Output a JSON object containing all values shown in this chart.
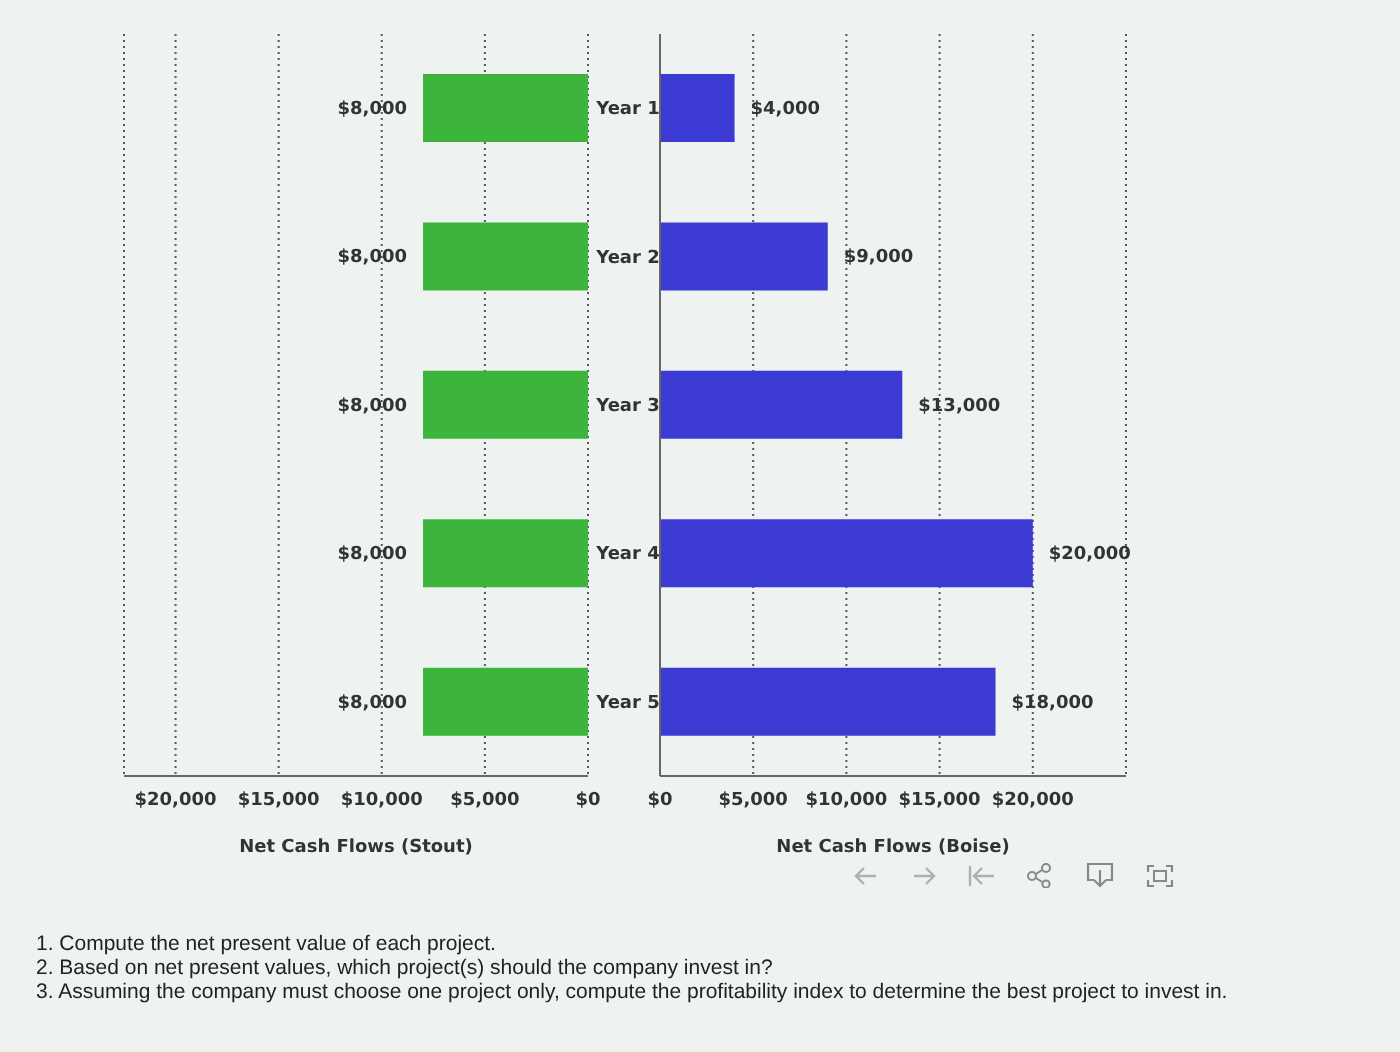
{
  "chart_data": [
    {
      "type": "bar",
      "orientation": "horizontal",
      "categories": [
        null,
        null,
        null,
        null,
        null
      ],
      "values": [
        8000,
        8000,
        8000,
        8000,
        8000
      ],
      "color": "#3db53d",
      "value_labels": [
        "$8,000",
        "$8,000",
        "$8,000",
        "$8,000",
        "$8,000"
      ],
      "xlim": [
        22500,
        0
      ],
      "xticks": [
        {
          "value": 20000,
          "label": "$20,000"
        },
        {
          "value": 15000,
          "label": "$15,000"
        },
        {
          "value": 10000,
          "label": "$10,000"
        },
        {
          "value": 5000,
          "label": "$5,000"
        },
        {
          "value": 0,
          "label": "$0"
        }
      ],
      "xlabel": "Net Cash Flows (Stout)",
      "grid": "x",
      "tick_labels": "x"
    },
    {
      "type": "bar",
      "orientation": "horizontal",
      "categories": [
        "Year 1",
        "Year 2",
        "Year 3",
        "Year 4",
        "Year 5"
      ],
      "values": [
        4000,
        9000,
        13000,
        20000,
        18000
      ],
      "color": "#3b3bd4",
      "value_labels": [
        "$4,000",
        "$9,000",
        "$13,000",
        "$20,000",
        "$18,000"
      ],
      "xlim": [
        0,
        25000
      ],
      "xticks": [
        {
          "value": 0,
          "label": "$0"
        },
        {
          "value": 5000,
          "label": "$5,000"
        },
        {
          "value": 10000,
          "label": "$10,000"
        },
        {
          "value": 15000,
          "label": "$15,000"
        },
        {
          "value": 20000,
          "label": "$20,000"
        }
      ],
      "xlabel": "Net Cash Flows (Boise)",
      "grid": "x",
      "annotations": [
        "1. Compute the net present value of each project.",
        "2. Based on net present values, which project(s) should the company invest in?",
        "3. Assuming the company must choose one project only, compute the profitability index to determine the best project to invest in."
      ]
    }
  ]
}
